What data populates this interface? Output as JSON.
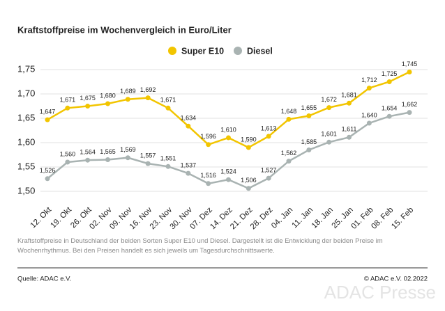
{
  "chart_data": {
    "type": "line",
    "title": "Kraftstoffpreise im Wochenvergleich in Euro/Liter",
    "categories": [
      "12. Okt",
      "19. Okt",
      "26. Okt",
      "02. Nov",
      "09. Nov",
      "16. Nov",
      "23. Nov",
      "30. Nov",
      "07. Dez",
      "14. Dez",
      "21. Dez",
      "28. Dez",
      "04. Jan",
      "11. Jan",
      "18. Jan",
      "25. Jan",
      "01. Feb",
      "08. Feb",
      "15. Feb"
    ],
    "series": [
      {
        "name": "Super E10",
        "color": "#f2c500",
        "values": [
          1.647,
          1.671,
          1.675,
          1.68,
          1.689,
          1.692,
          1.671,
          1.634,
          1.596,
          1.61,
          1.59,
          1.613,
          1.648,
          1.655,
          1.672,
          1.681,
          1.712,
          1.725,
          1.745
        ],
        "value_labels": [
          "1,647",
          "1,671",
          "1,675",
          "1,680",
          "1,689",
          "1,692",
          "1,671",
          "1,634",
          "1,596",
          "1,610",
          "1,590",
          "1,613",
          "1,648",
          "1,655",
          "1,672",
          "1,681",
          "1,712",
          "1,725",
          "1,745"
        ]
      },
      {
        "name": "Diesel",
        "color": "#a9b3b2",
        "values": [
          1.526,
          1.56,
          1.564,
          1.565,
          1.569,
          1.557,
          1.551,
          1.537,
          1.516,
          1.524,
          1.506,
          1.527,
          1.562,
          1.585,
          1.601,
          1.611,
          1.64,
          1.654,
          1.662
        ],
        "value_labels": [
          "1,526",
          "1,560",
          "1,564",
          "1,565",
          "1,569",
          "1,557",
          "1,551",
          "1,537",
          "1,516",
          "1,524",
          "1,506",
          "1,527",
          "1,562",
          "1,585",
          "1,601",
          "1,611",
          "1,640",
          "1,654",
          "1,662"
        ]
      }
    ],
    "ylim": [
      1.485,
      1.76
    ],
    "yticks": [
      {
        "value": 1.5,
        "label": "1,50"
      },
      {
        "value": 1.55,
        "label": "1,55"
      },
      {
        "value": 1.6,
        "label": "1,60"
      },
      {
        "value": 1.65,
        "label": "1,65"
      },
      {
        "value": 1.7,
        "label": "1,70"
      },
      {
        "value": 1.75,
        "label": "1,75"
      }
    ],
    "grid": true
  },
  "footer": {
    "note": "Kraftstoffpreise in Deutschland der beiden Sorten Super E10 und Diesel. Dargestellt ist die Entwicklung der beiden Preise im Wochenrhythmus. Bei den Preisen handelt es sich jeweils um Tagesdurchschnittswerte.",
    "source": "Quelle: ADAC e.V.",
    "copyright": "© ADAC e.V. 02.2022",
    "watermark": "ADAC Presse"
  }
}
